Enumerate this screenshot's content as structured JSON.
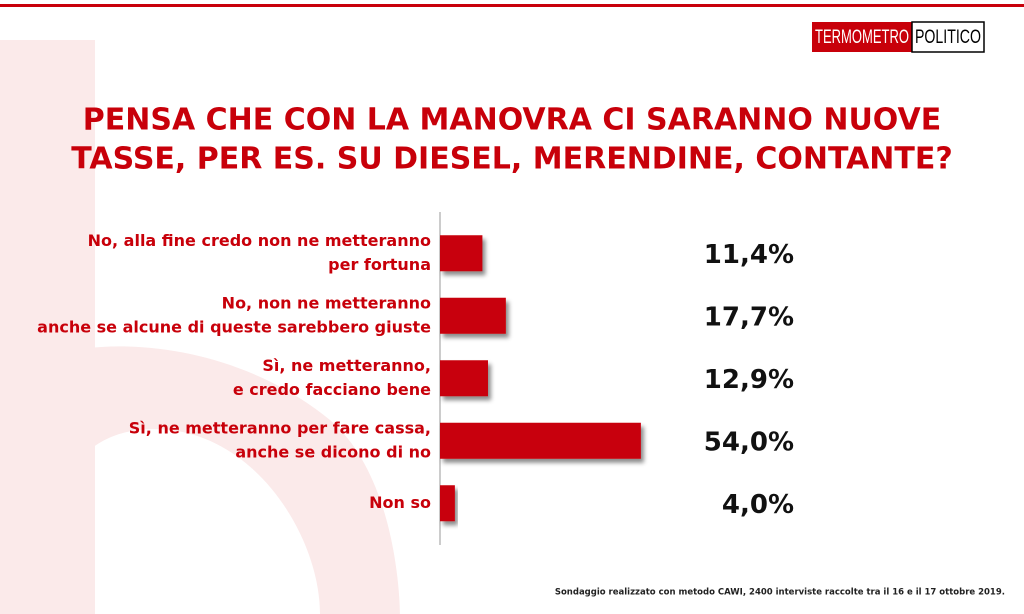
{
  "logo": {
    "left": "TERMOMETRO",
    "right": "POLITICO"
  },
  "chart_data": {
    "type": "bar",
    "orientation": "horizontal",
    "title": [
      "PENSA CHE CON LA MANOVRA CI SARANNO NUOVE",
      "TASSE, PER ES. SU DIESEL, MERENDINE, CONTANTE?"
    ],
    "categories": [
      [
        "No, alla fine credo non ne metteranno",
        "per fortuna"
      ],
      [
        "No, non ne metteranno",
        "anche se alcune di queste sarebbero giuste"
      ],
      [
        "Sì, ne metteranno,",
        "e credo facciano bene"
      ],
      [
        "Sì, ne metteranno per fare cassa,",
        "anche se dicono di no"
      ],
      [
        "Non so"
      ]
    ],
    "values": [
      11.4,
      17.7,
      12.9,
      54.0,
      4.0
    ],
    "value_labels": [
      "11,4%",
      "17,7%",
      "12,9%",
      "54,0%",
      "4,0%"
    ],
    "color": "#c8000a"
  },
  "footnote": "Sondaggio realizzato con metodo CAWI, 2400 interviste raccolte tra il 16 e il 17 ottobre 2019."
}
